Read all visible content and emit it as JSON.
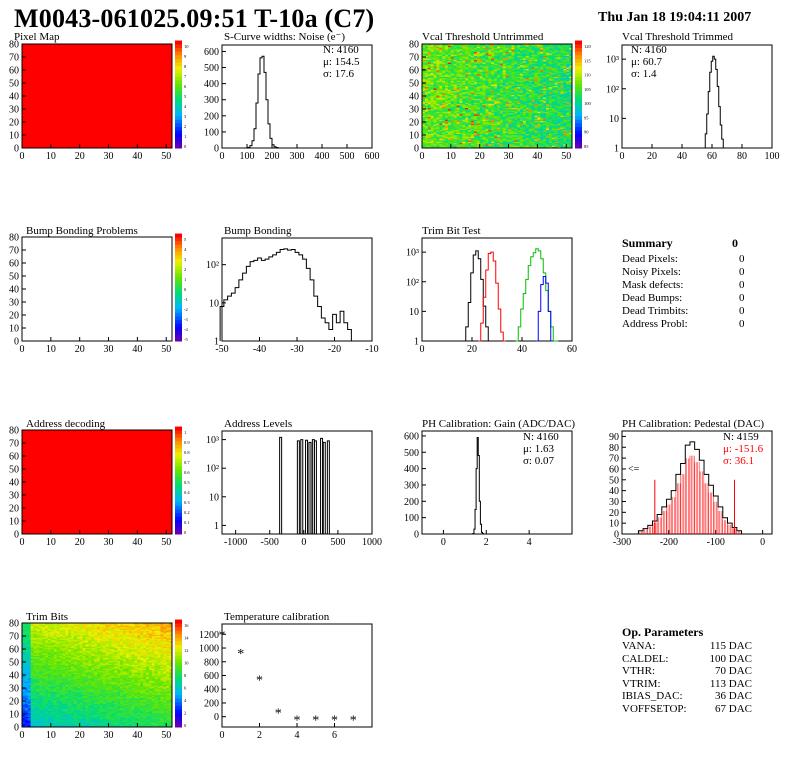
{
  "header": {
    "title": "M0043-061025.09:51 T-10a (C7)",
    "date": "Thu Jan 18 19:04:11 2007"
  },
  "panels": {
    "pixel_map": {
      "title": "Pixel Map",
      "z_ticks": [
        "10",
        "9",
        "8",
        "7",
        "6",
        "5",
        "4",
        "3",
        "2",
        "1",
        "0"
      ]
    },
    "scurve": {
      "title": "S-Curve widths: Noise (e⁻)",
      "stats": {
        "n": "N: 4160",
        "mu": "μ: 154.5",
        "sigma": "σ: 17.6"
      }
    },
    "vcal_untrimmed": {
      "title": "Vcal Threshold Untrimmed",
      "z_ticks": [
        "120",
        "115",
        "110",
        "105",
        "100",
        "95",
        "90",
        "85"
      ]
    },
    "vcal_trimmed": {
      "title": "Vcal Threshold Trimmed",
      "stats": {
        "n": "N: 4160",
        "mu": "μ: 60.7",
        "sigma": "σ:  1.4"
      }
    },
    "bump_problems": {
      "title": "Bump Bonding Problems",
      "z_ticks": [
        "5",
        "4",
        "3",
        "2",
        "1",
        "0",
        "-1",
        "-2",
        "-3",
        "-4",
        "-5"
      ]
    },
    "bump_bonding": {
      "title": "Bump Bonding"
    },
    "trim_bit_test": {
      "title": "Trim Bit Test"
    },
    "address_decoding": {
      "title": "Address decoding",
      "z_ticks": [
        "1",
        "0.9",
        "0.8",
        "0.7",
        "0.6",
        "0.5",
        "0.4",
        "0.3",
        "0.2",
        "0.1",
        "0"
      ]
    },
    "address_levels": {
      "title": "Address Levels"
    },
    "ph_gain": {
      "title": "PH Calibration: Gain (ADC/DAC)",
      "stats": {
        "n": "N: 4160",
        "mu": "μ: 1.63",
        "sigma": "σ: 0.07"
      }
    },
    "ph_pedestal": {
      "title": "PH Calibration: Pedestal (DAC)",
      "stats": {
        "n": "N: 4159",
        "mu": "μ: -151.6",
        "sigma": "σ: 36.1"
      },
      "marker": "<="
    },
    "trim_bits": {
      "title": "Trim Bits",
      "z_ticks": [
        "16",
        "14",
        "12",
        "10",
        "8",
        "6",
        "4",
        "2",
        "0"
      ]
    },
    "temperature": {
      "title": "Temperature calibration"
    }
  },
  "summary": {
    "title": "Summary",
    "total": "0",
    "rows": [
      {
        "label": "Dead Pixels:",
        "value": "0"
      },
      {
        "label": "Noisy Pixels:",
        "value": "0"
      },
      {
        "label": "Mask defects:",
        "value": "0"
      },
      {
        "label": "Dead Bumps:",
        "value": "0"
      },
      {
        "label": "Dead Trimbits:",
        "value": "0"
      },
      {
        "label": "Address Probl:",
        "value": "0"
      }
    ]
  },
  "op_params": {
    "title": "Op. Parameters",
    "rows": [
      {
        "label": "VANA:",
        "value": "115 DAC"
      },
      {
        "label": "CALDEL:",
        "value": "100 DAC"
      },
      {
        "label": "VTHR:",
        "value": "70 DAC"
      },
      {
        "label": "VTRIM:",
        "value": "113 DAC"
      },
      {
        "label": "IBIAS_DAC:",
        "value": "36 DAC"
      },
      {
        "label": "VOFFSETOP:",
        "value": "67 DAC"
      }
    ]
  },
  "chart_data": [
    {
      "type": "heatmap",
      "title": "Pixel Map",
      "x_ticks": [
        "0",
        "10",
        "20",
        "30",
        "40",
        "50"
      ],
      "y_ticks": [
        "0",
        "10",
        "20",
        "30",
        "40",
        "50",
        "60",
        "70",
        "80"
      ],
      "xlim": [
        0,
        52
      ],
      "ylim": [
        0,
        80
      ],
      "fill": "uniform-max"
    },
    {
      "type": "histogram",
      "title": "S-Curve widths: Noise (e⁻)",
      "x_ticks": [
        "0",
        "100",
        "200",
        "300",
        "400",
        "500",
        "600"
      ],
      "y_ticks": [
        "0",
        "100",
        "200",
        "300",
        "400",
        "500",
        "600"
      ],
      "xlim": [
        0,
        600
      ],
      "ylim": [
        0,
        640
      ],
      "x": [
        100,
        108,
        116,
        124,
        132,
        140,
        148,
        156,
        164,
        172,
        180,
        188,
        196,
        204,
        212,
        220,
        228
      ],
      "values": [
        0,
        4,
        15,
        45,
        120,
        280,
        460,
        560,
        570,
        470,
        300,
        150,
        60,
        20,
        8,
        3,
        0
      ]
    },
    {
      "type": "heatmap",
      "title": "Vcal Threshold Untrimmed",
      "x_ticks": [
        "0",
        "10",
        "20",
        "30",
        "40",
        "50"
      ],
      "y_ticks": [
        "0",
        "10",
        "20",
        "30",
        "40",
        "50",
        "60",
        "70",
        "80"
      ],
      "xlim": [
        0,
        52
      ],
      "ylim": [
        0,
        80
      ],
      "zlim": [
        80,
        125
      ]
    },
    {
      "type": "histogram",
      "title": "Vcal Threshold Trimmed",
      "log_y": true,
      "x_ticks": [
        "0",
        "20",
        "40",
        "60",
        "80",
        "100"
      ],
      "y_ticks": [
        "1",
        "10",
        "10²",
        "10³"
      ],
      "xlim": [
        0,
        100
      ],
      "ylim": [
        1,
        3000
      ],
      "x": [
        55,
        56,
        57,
        58,
        59,
        60,
        61,
        62,
        63,
        64,
        65,
        66,
        67,
        68
      ],
      "values": [
        1,
        3,
        14,
        80,
        360,
        850,
        1250,
        1000,
        450,
        120,
        25,
        6,
        2,
        1
      ]
    },
    {
      "type": "heatmap",
      "title": "Bump Bonding Problems",
      "x_ticks": [
        "0",
        "10",
        "20",
        "30",
        "40",
        "50"
      ],
      "y_ticks": [
        "0",
        "10",
        "20",
        "30",
        "40",
        "50",
        "60",
        "70",
        "80"
      ],
      "xlim": [
        0,
        52
      ],
      "ylim": [
        0,
        80
      ],
      "zlim": [
        -5,
        5
      ],
      "fill": "empty"
    },
    {
      "type": "histogram",
      "title": "Bump Bonding",
      "log_y": true,
      "x_ticks": [
        "-50",
        "-40",
        "-30",
        "-20",
        "-10"
      ],
      "y_ticks": [
        "1",
        "10",
        "10²"
      ],
      "xlim": [
        -50,
        -10
      ],
      "ylim": [
        1,
        500
      ],
      "x": [
        -50,
        -49,
        -48,
        -47,
        -46,
        -45,
        -44,
        -43,
        -42,
        -41,
        -40,
        -39,
        -38,
        -37,
        -36,
        -35,
        -34,
        -33,
        -32,
        -31,
        -30,
        -29,
        -28,
        -27,
        -26,
        -25,
        -24,
        -23,
        -22,
        -21,
        -20,
        -19,
        -18,
        -17,
        -16,
        -15,
        -14
      ],
      "values": [
        8,
        12,
        15,
        18,
        25,
        40,
        60,
        90,
        120,
        130,
        150,
        130,
        140,
        160,
        180,
        210,
        250,
        260,
        240,
        250,
        210,
        180,
        140,
        80,
        40,
        15,
        8,
        4,
        3,
        2,
        5,
        3,
        6,
        3,
        2,
        1,
        1
      ]
    },
    {
      "type": "histogram",
      "title": "Trim Bit Test",
      "log_y": true,
      "x_ticks": [
        "0",
        "20",
        "40",
        "60"
      ],
      "y_ticks": [
        "1",
        "10",
        "10²",
        "10³"
      ],
      "xlim": [
        0,
        60
      ],
      "ylim": [
        1,
        3000
      ],
      "series": [
        {
          "name": "black",
          "color": "#000000",
          "x": [
            17,
            18,
            19,
            20,
            21,
            22,
            23,
            24,
            25,
            26,
            27
          ],
          "values": [
            1,
            3,
            20,
            200,
            800,
            1100,
            600,
            120,
            15,
            3,
            1
          ]
        },
        {
          "name": "red",
          "color": "#ff0000",
          "x": [
            23,
            24,
            25,
            26,
            27,
            28,
            29,
            30,
            31,
            32,
            33
          ],
          "values": [
            1,
            4,
            30,
            250,
            900,
            1000,
            500,
            90,
            12,
            2,
            1
          ]
        },
        {
          "name": "green",
          "color": "#00c000",
          "x": [
            38,
            39,
            40,
            41,
            42,
            43,
            44,
            45,
            46,
            47,
            48,
            49,
            50,
            51,
            52,
            53,
            54
          ],
          "values": [
            1,
            3,
            12,
            40,
            120,
            350,
            700,
            950,
            1300,
            1100,
            600,
            200,
            50,
            10,
            3,
            1,
            1
          ]
        },
        {
          "name": "blue",
          "color": "#0000ff",
          "x": [
            46,
            47,
            48,
            49,
            50,
            51,
            52
          ],
          "values": [
            1,
            10,
            80,
            150,
            90,
            10,
            1
          ]
        }
      ]
    },
    {
      "type": "heatmap",
      "title": "Address decoding",
      "x_ticks": [
        "0",
        "10",
        "20",
        "30",
        "40",
        "50"
      ],
      "y_ticks": [
        "0",
        "10",
        "20",
        "30",
        "40",
        "50",
        "60",
        "70",
        "80"
      ],
      "xlim": [
        0,
        52
      ],
      "ylim": [
        0,
        80
      ],
      "zlim": [
        0,
        1
      ],
      "fill": "uniform-max"
    },
    {
      "type": "histogram",
      "title": "Address Levels",
      "log_y": true,
      "x_ticks": [
        "-1000",
        "-500",
        "0",
        "500",
        "1000"
      ],
      "y_ticks": [
        "1",
        "10",
        "10²",
        "10³"
      ],
      "xlim": [
        -1200,
        1000
      ],
      "ylim": [
        0.5,
        2000
      ],
      "peaks": [
        -340,
        -80,
        -30,
        40,
        90,
        140,
        170,
        260,
        300,
        360
      ],
      "peak_values": [
        1200,
        900,
        1000,
        950,
        800,
        1000,
        900,
        1100,
        800,
        900
      ]
    },
    {
      "type": "histogram",
      "title": "PH Calibration: Gain (ADC/DAC)",
      "x_ticks": [
        "0",
        "2",
        "4"
      ],
      "y_ticks": [
        "0",
        "100",
        "200",
        "300",
        "400",
        "500",
        "600"
      ],
      "xlim": [
        -1,
        6
      ],
      "ylim": [
        0,
        630
      ],
      "x": [
        1.4,
        1.45,
        1.5,
        1.55,
        1.6,
        1.65,
        1.7,
        1.75,
        1.8,
        1.85
      ],
      "values": [
        3,
        30,
        150,
        400,
        590,
        480,
        200,
        60,
        10,
        2
      ]
    },
    {
      "type": "histogram",
      "title": "PH Calibration: Pedestal (DAC)",
      "x_ticks": [
        "-300",
        "-200",
        "-100",
        "0"
      ],
      "y_ticks": [
        "0",
        "10",
        "20",
        "30",
        "40",
        "50",
        "60",
        "70",
        "80",
        "90"
      ],
      "xlim": [
        -300,
        20
      ],
      "ylim": [
        0,
        95
      ],
      "fit_color": "#ff0000",
      "x": [
        -260,
        -250,
        -240,
        -230,
        -220,
        -210,
        -200,
        -190,
        -180,
        -170,
        -160,
        -150,
        -140,
        -130,
        -120,
        -110,
        -100,
        -90,
        -80,
        -70,
        -60,
        -50
      ],
      "values": [
        3,
        5,
        8,
        12,
        18,
        25,
        32,
        40,
        55,
        65,
        82,
        85,
        78,
        68,
        55,
        45,
        35,
        25,
        15,
        10,
        6,
        3
      ]
    },
    {
      "type": "heatmap",
      "title": "Trim Bits",
      "x_ticks": [
        "0",
        "10",
        "20",
        "30",
        "40",
        "50"
      ],
      "y_ticks": [
        "0",
        "10",
        "20",
        "30",
        "40",
        "50",
        "60",
        "70",
        "80"
      ],
      "xlim": [
        0,
        52
      ],
      "ylim": [
        0,
        80
      ],
      "zlim": [
        0,
        16
      ]
    },
    {
      "type": "scatter",
      "title": "Temperature calibration",
      "x_ticks": [
        "0",
        "2",
        "4",
        "6"
      ],
      "y_ticks": [
        "0",
        "200",
        "400",
        "600",
        "800",
        "1000",
        "1200"
      ],
      "xlim": [
        0,
        8
      ],
      "ylim": [
        -150,
        1350
      ],
      "x": [
        0,
        1,
        2,
        3,
        4,
        5,
        6,
        7
      ],
      "values": [
        1200,
        930,
        540,
        60,
        -40,
        -40,
        -40,
        -40
      ]
    }
  ]
}
